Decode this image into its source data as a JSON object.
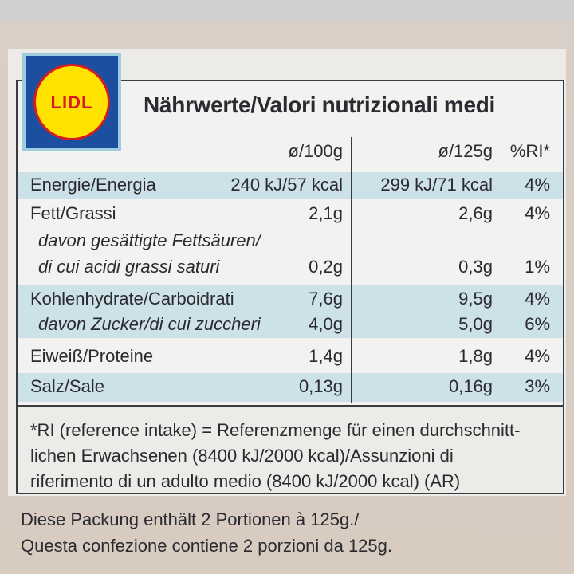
{
  "logo": "LIDL",
  "title": "Nährwerte/Valori nutrizionali medi",
  "table": {
    "header": [
      "ø/100g",
      "ø/125g",
      "%RI*"
    ],
    "rows": [
      {
        "label": [
          "Energie/Energia"
        ],
        "per_100g": "240 kJ/57 kcal",
        "per_125g": "299 kJ/71 kcal",
        "ri": "4%"
      },
      {
        "label": [
          "Fett/Grassi"
        ],
        "per_100g": "2,1g",
        "per_125g": "2,6g",
        "ri": "4%"
      },
      {
        "label": [
          "davon gesättigte Fettsäuren/",
          "di cui acidi grassi saturi"
        ],
        "per_100g": "0,2g",
        "per_125g": "0,3g",
        "ri": "1%"
      },
      {
        "label": [
          "Kohlenhydrate/Carboidrati"
        ],
        "per_100g": "7,6g",
        "per_125g": "9,5g",
        "ri": "4%"
      },
      {
        "label": [
          "davon Zucker/di cui zuccheri"
        ],
        "per_100g": "4,0g",
        "per_125g": "5,0g",
        "ri": "6%"
      },
      {
        "label": [
          "Eiweiß/Proteine"
        ],
        "per_100g": "1,4g",
        "per_125g": "1,8g",
        "ri": "4%"
      },
      {
        "label": [
          "Salz/Sale"
        ],
        "per_100g": "0,13g",
        "per_125g": "0,16g",
        "ri": "3%"
      }
    ]
  },
  "footnote": [
    "*RI (reference intake) = Referenzmenge für einen durchschnitt-",
    "lichen Erwachsenen (8400 kJ/2000 kcal)/Assunzioni di",
    "riferimento di un adulto medio (8400 kJ/2000 kcal) (AR)"
  ],
  "package_note": [
    "Diese Packung enthält 2 Portionen à 125g./",
    "Questa confezione contiene 2 porzioni da 125g."
  ]
}
